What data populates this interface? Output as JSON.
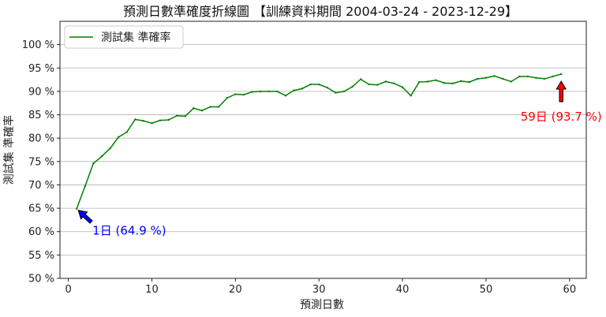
{
  "chart_data": {
    "type": "line",
    "title": "預測日數準確度折線圖 【訓練資料期間 2004-03-24 - 2023-12-29】",
    "xlabel": "預測日數",
    "ylabel": "測試集 準確率",
    "xlim": [
      -1,
      62
    ],
    "ylim": [
      50,
      105
    ],
    "xticks": [
      0,
      10,
      20,
      30,
      40,
      50,
      60
    ],
    "yticks": [
      50,
      55,
      60,
      65,
      70,
      75,
      80,
      85,
      90,
      95,
      100
    ],
    "ytick_labels": [
      "50 %",
      "55 %",
      "60 %",
      "65 %",
      "70 %",
      "75 %",
      "80 %",
      "85 %",
      "90 %",
      "95 %",
      "100 %"
    ],
    "grid": "horizontal",
    "legend_position": "top-left",
    "series": [
      {
        "name": "測試集 準確率",
        "color": "#008000",
        "x": [
          1,
          2,
          3,
          4,
          5,
          6,
          7,
          8,
          9,
          10,
          11,
          12,
          13,
          14,
          15,
          16,
          17,
          18,
          19,
          20,
          21,
          22,
          23,
          24,
          25,
          26,
          27,
          28,
          29,
          30,
          31,
          32,
          33,
          34,
          35,
          36,
          37,
          38,
          39,
          40,
          41,
          42,
          43,
          44,
          45,
          46,
          47,
          48,
          49,
          50,
          51,
          52,
          53,
          54,
          55,
          56,
          57,
          58,
          59
        ],
        "values": [
          64.9,
          69.7,
          74.6,
          76.1,
          77.8,
          80.2,
          81.3,
          84.0,
          83.7,
          83.2,
          83.8,
          83.9,
          84.8,
          84.7,
          86.4,
          85.9,
          86.7,
          86.7,
          88.6,
          89.4,
          89.3,
          89.9,
          90.0,
          90.0,
          90.0,
          89.1,
          90.2,
          90.6,
          91.5,
          91.5,
          90.8,
          89.7,
          90.0,
          91.0,
          92.6,
          91.5,
          91.4,
          92.1,
          91.7,
          90.9,
          89.1,
          92.0,
          92.1,
          92.4,
          91.8,
          91.7,
          92.2,
          92.0,
          92.7,
          92.9,
          93.3,
          92.7,
          92.1,
          93.2,
          93.2,
          92.9,
          92.7,
          93.2,
          93.7
        ]
      }
    ],
    "annotations": [
      {
        "text": "1日 (64.9 %)",
        "x": 1,
        "y": 64.9,
        "color": "#0000ff",
        "arrow": "points up-left to the first data point"
      },
      {
        "text": "59日 (93.7 %)",
        "x": 59,
        "y": 93.7,
        "color": "#ff0000",
        "arrow": "points up to the last data point"
      }
    ]
  }
}
